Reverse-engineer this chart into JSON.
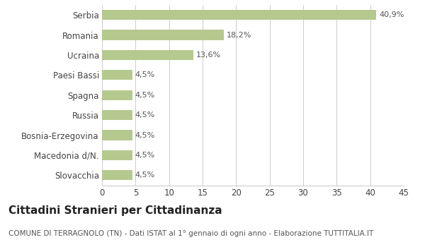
{
  "categories": [
    "Slovacchia",
    "Macedonia d/N.",
    "Bosnia-Erzegovina",
    "Russia",
    "Spagna",
    "Paesi Bassi",
    "Ucraina",
    "Romania",
    "Serbia"
  ],
  "values": [
    4.5,
    4.5,
    4.5,
    4.5,
    4.5,
    4.5,
    13.6,
    18.2,
    40.9
  ],
  "labels": [
    "4,5%",
    "4,5%",
    "4,5%",
    "4,5%",
    "4,5%",
    "4,5%",
    "13,6%",
    "18,2%",
    "40,9%"
  ],
  "bar_color": "#b5c98e",
  "background_color": "#ffffff",
  "grid_color": "#cccccc",
  "title": "Cittadini Stranieri per Cittadinanza",
  "subtitle": "COMUNE DI TERRAGNOLO (TN) - Dati ISTAT al 1° gennaio di ogni anno - Elaborazione TUTTITALIA.IT",
  "xlim": [
    0,
    45
  ],
  "xticks": [
    0,
    5,
    10,
    15,
    20,
    25,
    30,
    35,
    40,
    45
  ],
  "title_fontsize": 11,
  "subtitle_fontsize": 7.5,
  "label_fontsize": 8,
  "tick_fontsize": 8.5,
  "bar_height": 0.5
}
